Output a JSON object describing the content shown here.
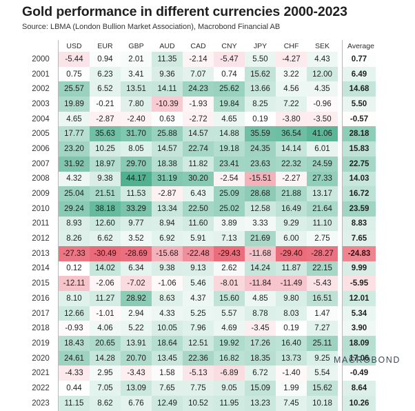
{
  "title": "Gold performance in different currencies 2000-2023",
  "subtitle": "Source: LBMA (London Bullion Market Association), Macrobond Financial AB",
  "logo": "MACROBOND",
  "colors": {
    "positive": "#46ad8a",
    "negative": "#e86272",
    "neutral": "#ffffff"
  },
  "chart_data": {
    "type": "heatmap",
    "title": "Gold performance in different currencies 2000-2023",
    "subtitle": "Source: LBMA (London Bullion Market Association), Macrobond Financial AB",
    "columns": [
      "USD",
      "EUR",
      "GBP",
      "AUD",
      "CAD",
      "CNY",
      "JPY",
      "CHF",
      "SEK"
    ],
    "average_label": "Average",
    "rows": [
      {
        "year": "2000",
        "values": [
          "-5.44",
          "0.94",
          "2.01",
          "11.35",
          "-2.14",
          "-5.47",
          "5.50",
          "-4.27",
          "4.43"
        ],
        "average": "0.77"
      },
      {
        "year": "2001",
        "values": [
          "0.75",
          "6.23",
          "3.41",
          "9.36",
          "7.07",
          "0.74",
          "15.62",
          "3.22",
          "12.00"
        ],
        "average": "6.49"
      },
      {
        "year": "2002",
        "values": [
          "25.57",
          "6.52",
          "13.51",
          "14.11",
          "24.23",
          "25.62",
          "13.66",
          "4.56",
          "4.35"
        ],
        "average": "14.68"
      },
      {
        "year": "2003",
        "values": [
          "19.89",
          "-0.21",
          "7.80",
          "-10.39",
          "-1.93",
          "19.84",
          "8.25",
          "7.22",
          "-0.96"
        ],
        "average": "5.50"
      },
      {
        "year": "2004",
        "values": [
          "4.65",
          "-2.87",
          "-2.40",
          "0.63",
          "-2.72",
          "4.65",
          "0.19",
          "-3.80",
          "-3.50"
        ],
        "average": "-0.57"
      },
      {
        "year": "2005",
        "values": [
          "17.77",
          "35.63",
          "31.70",
          "25.88",
          "14.57",
          "14.88",
          "35.59",
          "36.54",
          "41.06"
        ],
        "average": "28.18"
      },
      {
        "year": "2006",
        "values": [
          "23.20",
          "10.25",
          "8.05",
          "14.57",
          "22.74",
          "19.18",
          "24.35",
          "14.14",
          "6.01"
        ],
        "average": "15.83"
      },
      {
        "year": "2007",
        "values": [
          "31.92",
          "18.97",
          "29.70",
          "18.38",
          "11.82",
          "23.41",
          "23.63",
          "22.32",
          "24.59"
        ],
        "average": "22.75"
      },
      {
        "year": "2008",
        "values": [
          "4.32",
          "9.38",
          "44.17",
          "31.19",
          "30.20",
          "-2.54",
          "-15.51",
          "-2.27",
          "27.33"
        ],
        "average": "14.03"
      },
      {
        "year": "2009",
        "values": [
          "25.04",
          "21.51",
          "11.53",
          "-2.87",
          "6.43",
          "25.09",
          "28.68",
          "21.88",
          "13.17"
        ],
        "average": "16.72"
      },
      {
        "year": "2010",
        "values": [
          "29.24",
          "38.18",
          "33.29",
          "13.34",
          "22.50",
          "25.02",
          "12.58",
          "16.49",
          "21.64"
        ],
        "average": "23.59"
      },
      {
        "year": "2011",
        "values": [
          "8.93",
          "12.60",
          "9.77",
          "8.94",
          "11.60",
          "3.89",
          "3.33",
          "9.29",
          "11.10"
        ],
        "average": "8.83"
      },
      {
        "year": "2012",
        "values": [
          "8.26",
          "6.62",
          "3.52",
          "6.92",
          "5.91",
          "7.13",
          "21.69",
          "6.00",
          "2.75"
        ],
        "average": "7.65"
      },
      {
        "year": "2013",
        "values": [
          "-27.33",
          "-30.49",
          "-28.69",
          "-15.68",
          "-22.48",
          "-29.43",
          "-11.68",
          "-29.40",
          "-28.27"
        ],
        "average": "-24.83"
      },
      {
        "year": "2014",
        "values": [
          "0.12",
          "14.02",
          "6.34",
          "9.38",
          "9.13",
          "2.62",
          "14.24",
          "11.87",
          "22.15"
        ],
        "average": "9.99"
      },
      {
        "year": "2015",
        "values": [
          "-12.11",
          "-2.06",
          "-7.02",
          "-1.06",
          "5.46",
          "-8.01",
          "-11.84",
          "-11.49",
          "-5.43"
        ],
        "average": "-5.95"
      },
      {
        "year": "2016",
        "values": [
          "8.10",
          "11.27",
          "28.92",
          "8.63",
          "4.37",
          "15.60",
          "4.85",
          "9.80",
          "16.51"
        ],
        "average": "12.01"
      },
      {
        "year": "2017",
        "values": [
          "12.66",
          "-1.01",
          "2.94",
          "4.33",
          "5.25",
          "5.57",
          "8.78",
          "8.03",
          "1.47"
        ],
        "average": "5.34"
      },
      {
        "year": "2018",
        "values": [
          "-0.93",
          "4.06",
          "5.22",
          "10.05",
          "7.96",
          "4.69",
          "-3.45",
          "0.19",
          "7.27"
        ],
        "average": "3.90"
      },
      {
        "year": "2019",
        "values": [
          "18.43",
          "20.65",
          "13.91",
          "18.64",
          "12.51",
          "19.92",
          "17.26",
          "16.40",
          "25.11"
        ],
        "average": "18.09"
      },
      {
        "year": "2020",
        "values": [
          "24.61",
          "14.28",
          "20.70",
          "13.45",
          "22.36",
          "16.82",
          "18.35",
          "13.73",
          "9.25"
        ],
        "average": "17.06"
      },
      {
        "year": "2021",
        "values": [
          "-4.33",
          "2.95",
          "-3.43",
          "1.58",
          "-5.13",
          "-6.89",
          "6.72",
          "-1.40",
          "5.54"
        ],
        "average": "-0.49"
      },
      {
        "year": "2022",
        "values": [
          "0.44",
          "7.05",
          "13.09",
          "7.65",
          "7.75",
          "9.05",
          "15.09",
          "1.99",
          "15.62"
        ],
        "average": "8.64"
      },
      {
        "year": "2023",
        "values": [
          "11.15",
          "8.62",
          "6.76",
          "12.49",
          "10.52",
          "11.95",
          "13.23",
          "7.45",
          "10.18"
        ],
        "average": "10.26"
      }
    ]
  }
}
